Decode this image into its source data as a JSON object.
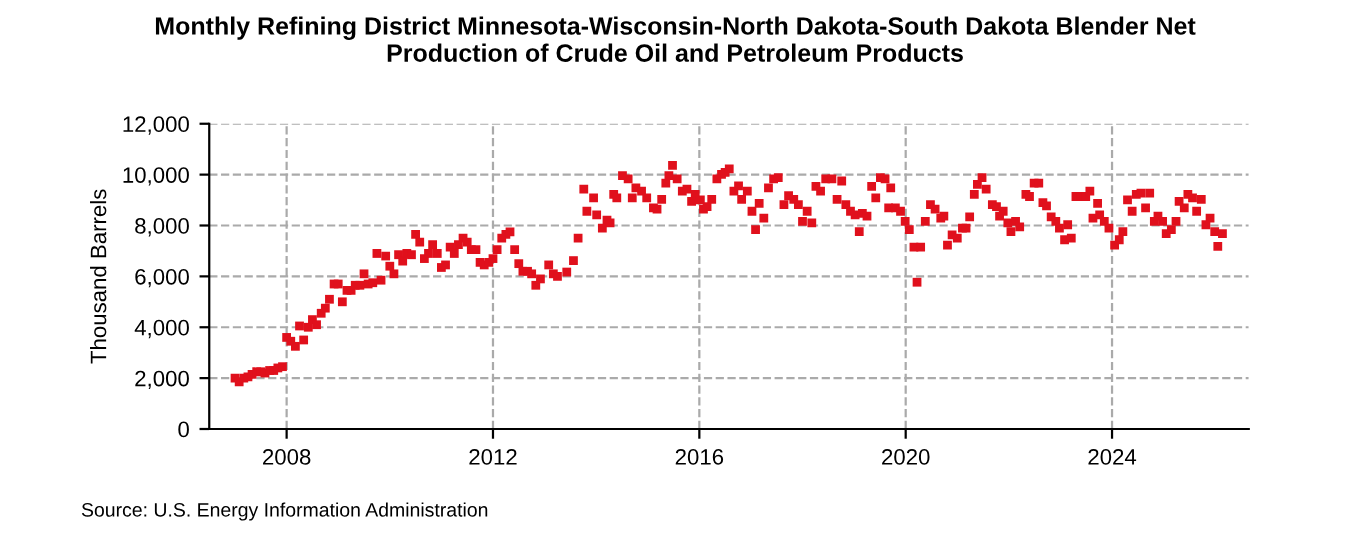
{
  "chart_data": {
    "type": "scatter",
    "title": "Monthly Refining District Minnesota-Wisconsin-North Dakota-South Dakota Blender Net\nProduction of Crude Oil and Petroleum Products",
    "ylabel": "Thousand Barrels",
    "annotations": [
      "Source: U.S. Energy Information Administration"
    ],
    "x": [
      2007.0,
      2007.08,
      2007.17,
      2007.25,
      2007.33,
      2007.42,
      2007.5,
      2007.58,
      2007.67,
      2007.75,
      2007.83,
      2007.92,
      2008.0,
      2008.08,
      2008.17,
      2008.25,
      2008.33,
      2008.42,
      2008.5,
      2008.58,
      2008.67,
      2008.75,
      2008.83,
      2008.92,
      2009.0,
      2009.08,
      2009.17,
      2009.25,
      2009.33,
      2009.42,
      2009.5,
      2009.58,
      2009.67,
      2009.75,
      2009.83,
      2009.92,
      2010.0,
      2010.08,
      2010.17,
      2010.25,
      2010.33,
      2010.42,
      2010.5,
      2010.58,
      2010.67,
      2010.75,
      2010.83,
      2010.92,
      2011.0,
      2011.08,
      2011.17,
      2011.25,
      2011.33,
      2011.42,
      2011.5,
      2011.58,
      2011.67,
      2011.75,
      2011.83,
      2011.92,
      2012.0,
      2012.08,
      2012.17,
      2012.25,
      2012.33,
      2012.42,
      2012.5,
      2012.58,
      2012.67,
      2012.75,
      2012.83,
      2012.92,
      2013.08,
      2013.17,
      2013.25,
      2013.43,
      2013.56,
      2013.65,
      2013.76,
      2013.82,
      2013.95,
      2014.01,
      2014.12,
      2014.21,
      2014.27,
      2014.34,
      2014.4,
      2014.51,
      2014.62,
      2014.7,
      2014.77,
      2014.88,
      2014.98,
      2015.11,
      2015.18,
      2015.27,
      2015.35,
      2015.41,
      2015.48,
      2015.57,
      2015.67,
      2015.76,
      2015.85,
      2015.92,
      2016.02,
      2016.08,
      2016.15,
      2016.24,
      2016.34,
      2016.43,
      2016.5,
      2016.58,
      2016.67,
      2016.76,
      2016.82,
      2016.93,
      2017.02,
      2017.09,
      2017.16,
      2017.25,
      2017.34,
      2017.44,
      2017.53,
      2017.64,
      2017.73,
      2017.83,
      2017.92,
      2018.0,
      2018.09,
      2018.18,
      2018.26,
      2018.35,
      2018.45,
      2018.57,
      2018.67,
      2018.76,
      2018.84,
      2018.93,
      2019.02,
      2019.1,
      2019.16,
      2019.25,
      2019.34,
      2019.42,
      2019.51,
      2019.6,
      2019.67,
      2019.71,
      2019.8,
      2019.9,
      2019.99,
      2020.07,
      2020.16,
      2020.22,
      2020.29,
      2020.38,
      2020.48,
      2020.57,
      2020.68,
      2020.74,
      2020.81,
      2020.9,
      2021.0,
      2021.1,
      2021.17,
      2021.24,
      2021.33,
      2021.39,
      2021.48,
      2021.56,
      2021.68,
      2021.76,
      2021.82,
      2021.89,
      2021.98,
      2022.04,
      2022.13,
      2022.21,
      2022.33,
      2022.4,
      2022.49,
      2022.58,
      2022.66,
      2022.73,
      2022.82,
      2022.91,
      2022.98,
      2023.08,
      2023.14,
      2023.21,
      2023.3,
      2023.4,
      2023.49,
      2023.57,
      2023.63,
      2023.72,
      2023.76,
      2023.85,
      2023.94,
      2024.05,
      2024.14,
      2024.21,
      2024.3,
      2024.39,
      2024.47,
      2024.56,
      2024.65,
      2024.73,
      2024.82,
      2024.89,
      2024.98,
      2025.05,
      2025.15,
      2025.24,
      2025.3,
      2025.4,
      2025.47,
      2025.56,
      2025.64,
      2025.73,
      2025.82,
      2025.9,
      2025.99,
      2026.05,
      2026.14
    ],
    "series": [
      {
        "color": "#e0101c",
        "values": [
          2000,
          1850,
          2000,
          2050,
          2150,
          2250,
          2250,
          2200,
          2300,
          2300,
          2400,
          2450,
          3600,
          3450,
          3250,
          4050,
          3500,
          4000,
          4300,
          4100,
          4550,
          4750,
          5100,
          5700,
          5700,
          5000,
          5450,
          5450,
          5650,
          5650,
          6100,
          5700,
          5750,
          6900,
          5850,
          6800,
          6400,
          6100,
          6850,
          6600,
          6900,
          6850,
          7650,
          7350,
          6700,
          6900,
          7250,
          6900,
          6350,
          6450,
          7150,
          6900,
          7250,
          7500,
          7350,
          7050,
          7050,
          6550,
          6450,
          6550,
          6700,
          7050,
          7500,
          7650,
          7750,
          7050,
          6500,
          6200,
          6200,
          6100,
          5650,
          5900,
          6450,
          6100,
          6000,
          6170,
          6620,
          7500,
          9430,
          8560,
          9090,
          8420,
          7900,
          8210,
          8100,
          9220,
          9090,
          9960,
          9830,
          9090,
          9480,
          9350,
          9090,
          8690,
          8640,
          9030,
          9670,
          9960,
          10360,
          9830,
          9350,
          9430,
          8950,
          9220,
          9010,
          8640,
          8740,
          9030,
          9830,
          10010,
          10090,
          10230,
          9350,
          9560,
          9030,
          9350,
          8560,
          7840,
          8870,
          8290,
          9480,
          9830,
          9880,
          8820,
          9170,
          9030,
          8820,
          8160,
          8560,
          8100,
          9540,
          9350,
          9830,
          9830,
          9030,
          9750,
          8820,
          8560,
          8420,
          7760,
          8480,
          8370,
          9540,
          9090,
          9880,
          9830,
          8690,
          9480,
          8690,
          8560,
          8160,
          7840,
          7150,
          5770,
          7150,
          8160,
          8820,
          8640,
          8290,
          8370,
          7230,
          7630,
          7500,
          7900,
          7900,
          8340,
          9220,
          9620,
          9880,
          9430,
          8820,
          8740,
          8370,
          8560,
          8100,
          7760,
          8160,
          7950,
          9220,
          9140,
          9670,
          9670,
          8900,
          8770,
          8340,
          8160,
          7900,
          7440,
          8030,
          7500,
          9140,
          9140,
          9140,
          9350,
          8290,
          8870,
          8420,
          8160,
          7900,
          7230,
          7440,
          7760,
          9010,
          8560,
          9220,
          9270,
          8690,
          9270,
          8160,
          8370,
          8160,
          7680,
          7840,
          8160,
          8950,
          8690,
          9220,
          9090,
          8560,
          9030,
          8030,
          8290,
          7760,
          7180,
          7680
        ]
      }
    ],
    "marker": "square",
    "xlim": [
      2006.5,
      2026.65
    ],
    "xticks": [
      2008,
      2012,
      2016,
      2020,
      2024
    ],
    "ylim": [
      0,
      12000
    ],
    "yticks": [
      {
        "value": 0,
        "label": "0"
      },
      {
        "value": 2000,
        "label": "2,000"
      },
      {
        "value": 4000,
        "label": "4,000"
      },
      {
        "value": 6000,
        "label": "6,000"
      },
      {
        "value": 8000,
        "label": "8,000"
      },
      {
        "value": 10000,
        "label": "10,000"
      },
      {
        "value": 12000,
        "label": "12,000"
      }
    ],
    "grid": true,
    "line_style": "dashed"
  }
}
